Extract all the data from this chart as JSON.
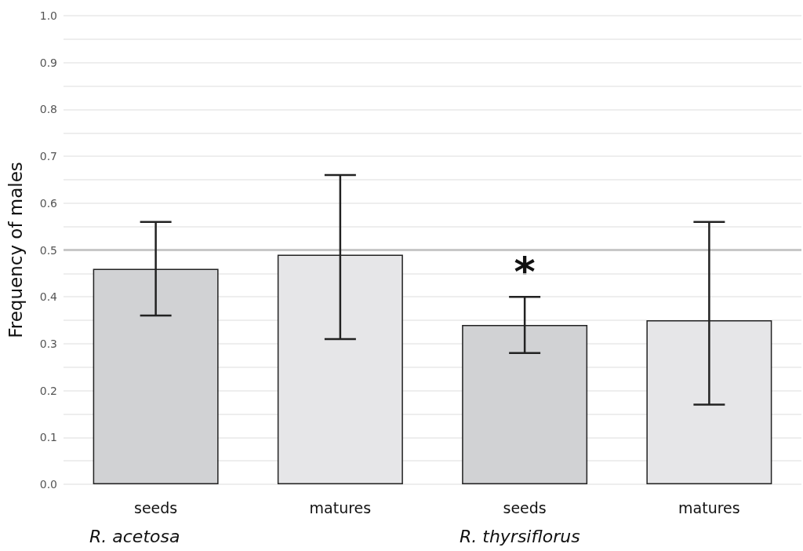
{
  "chart_data": {
    "type": "bar",
    "ylabel": "Frequency of males",
    "categories": [
      "seeds",
      "matures",
      "seeds",
      "matures"
    ],
    "values": [
      0.46,
      0.49,
      0.34,
      0.35
    ],
    "colors": [
      "#d1d2d4",
      "#e6e6e8",
      "#d1d2d4",
      "#e6e6e8"
    ],
    "errors": [
      [
        0.36,
        0.56
      ],
      [
        0.31,
        0.66
      ],
      [
        0.28,
        0.4
      ],
      [
        0.17,
        0.56
      ]
    ],
    "ylim": [
      0,
      1
    ],
    "yticks": [
      {
        "value": 0,
        "label": "0.0"
      },
      {
        "value": 0.05,
        "label": null
      },
      {
        "value": 0.1,
        "label": "0.1"
      },
      {
        "value": 0.15,
        "label": null
      },
      {
        "value": 0.2,
        "label": "0.2"
      },
      {
        "value": 0.25,
        "label": null
      },
      {
        "value": 0.3,
        "label": "0.3"
      },
      {
        "value": 0.35,
        "label": null
      },
      {
        "value": 0.4,
        "label": "0.4"
      },
      {
        "value": 0.45,
        "label": null
      },
      {
        "value": 0.5,
        "label": "0.5"
      },
      {
        "value": 0.55,
        "label": null
      },
      {
        "value": 0.6,
        "label": "0.6"
      },
      {
        "value": 0.65,
        "label": null
      },
      {
        "value": 0.7,
        "label": "0.7"
      },
      {
        "value": 0.75,
        "label": null
      },
      {
        "value": 0.8,
        "label": "0.8"
      },
      {
        "value": 0.85,
        "label": null
      },
      {
        "value": 0.9,
        "label": "0.9"
      },
      {
        "value": 0.95,
        "label": null
      },
      {
        "value": 1,
        "label": "1.0"
      }
    ],
    "ref_lines": [
      {
        "axis": "y",
        "value": 0.5,
        "color": "#c8c8c8"
      }
    ],
    "annotations": [
      "R. acetosa",
      "R. thyrsiflorus",
      {
        "text": "*",
        "y": 0.4
      }
    ],
    "grid": "y"
  }
}
